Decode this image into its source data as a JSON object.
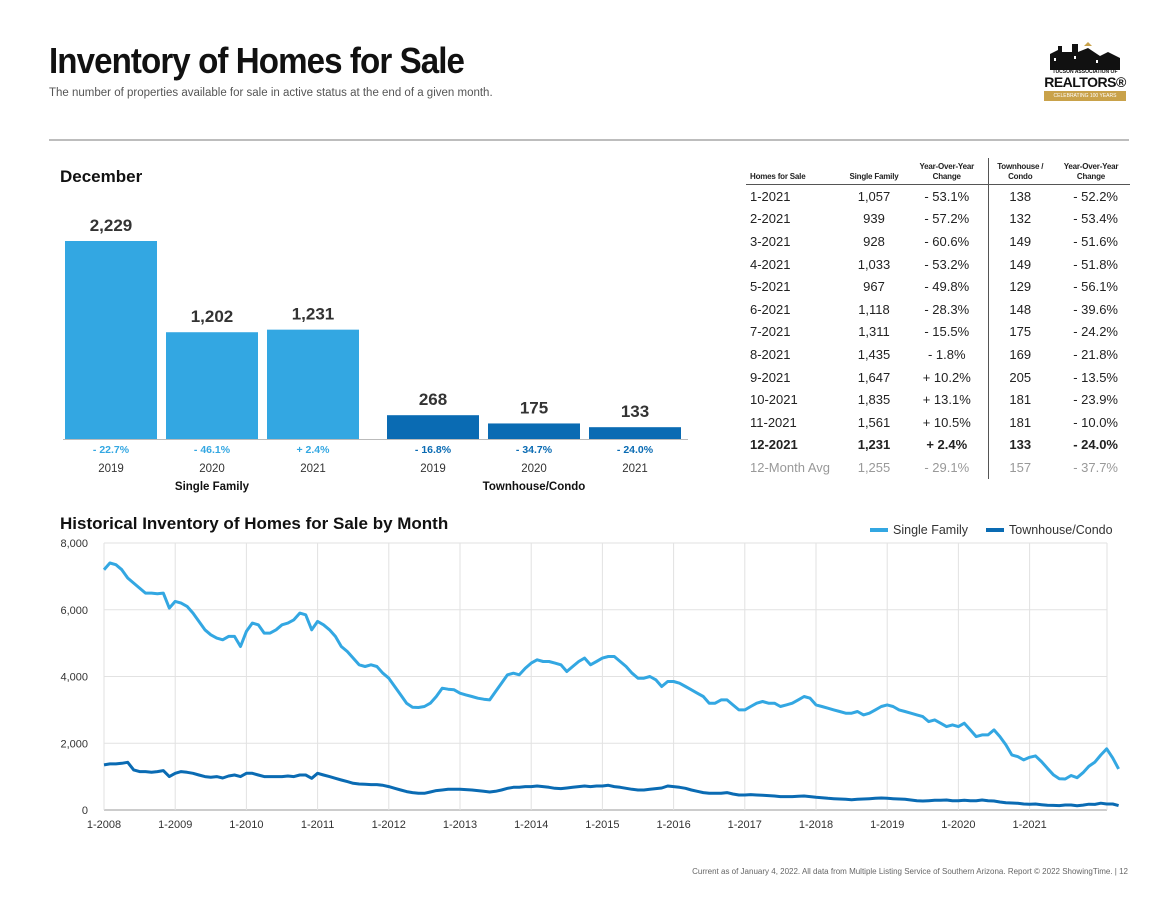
{
  "header": {
    "title": "Inventory of Homes for Sale",
    "subtitle": "The number of properties available for sale in active status at the end of a given month."
  },
  "logo": {
    "association": "TUCSON ASSOCIATION OF",
    "brand": "REALTORS®",
    "ribbon": "CELEBRATING 100 YEARS"
  },
  "colors": {
    "single_family": "#33a7e2",
    "townhouse": "#0a6bb3"
  },
  "table": {
    "headers": [
      "Homes for Sale",
      "Single Family",
      "Year-Over-Year Change",
      "Townhouse / Condo",
      "Year-Over-Year Change"
    ],
    "rows": [
      [
        "1-2021",
        "1,057",
        "- 53.1%",
        "138",
        "- 52.2%"
      ],
      [
        "2-2021",
        "939",
        "- 57.2%",
        "132",
        "- 53.4%"
      ],
      [
        "3-2021",
        "928",
        "- 60.6%",
        "149",
        "- 51.6%"
      ],
      [
        "4-2021",
        "1,033",
        "- 53.2%",
        "149",
        "- 51.8%"
      ],
      [
        "5-2021",
        "967",
        "- 49.8%",
        "129",
        "- 56.1%"
      ],
      [
        "6-2021",
        "1,118",
        "- 28.3%",
        "148",
        "- 39.6%"
      ],
      [
        "7-2021",
        "1,311",
        "- 15.5%",
        "175",
        "- 24.2%"
      ],
      [
        "8-2021",
        "1,435",
        "- 1.8%",
        "169",
        "- 21.8%"
      ],
      [
        "9-2021",
        "1,647",
        "+ 10.2%",
        "205",
        "- 13.5%"
      ],
      [
        "10-2021",
        "1,835",
        "+ 13.1%",
        "181",
        "- 23.9%"
      ],
      [
        "11-2021",
        "1,561",
        "+ 10.5%",
        "181",
        "- 10.0%"
      ],
      [
        "12-2021",
        "1,231",
        "+ 2.4%",
        "133",
        "- 24.0%"
      ],
      [
        "12-Month Avg",
        "1,255",
        "- 29.1%",
        "157",
        "- 37.7%"
      ]
    ]
  },
  "footer": "Current as of January 4, 2022. All data from Multiple Listing Service of Southern Arizona. Report © 2022 ShowingTime.  |  12",
  "chart_data": [
    {
      "type": "bar",
      "title": "December",
      "groups": [
        {
          "name": "Single Family",
          "categories": [
            "2019",
            "2020",
            "2021"
          ],
          "values": [
            2229,
            1202,
            1231
          ],
          "labels": [
            "2,229",
            "1,202",
            "1,231"
          ],
          "changes": [
            "- 22.7%",
            "- 46.1%",
            "+ 2.4%"
          ]
        },
        {
          "name": "Townhouse/Condo",
          "categories": [
            "2019",
            "2020",
            "2021"
          ],
          "values": [
            268,
            175,
            133
          ],
          "labels": [
            "268",
            "175",
            "133"
          ],
          "changes": [
            "- 16.8%",
            "- 34.7%",
            "- 24.0%"
          ]
        }
      ],
      "ylim": [
        0,
        2229
      ]
    },
    {
      "type": "line",
      "title": "Historical Inventory of Homes for Sale by Month",
      "xlabel": "",
      "ylabel": "",
      "x_ticks": [
        "1-2008",
        "1-2009",
        "1-2010",
        "1-2011",
        "1-2012",
        "1-2013",
        "1-2014",
        "1-2015",
        "1-2016",
        "1-2017",
        "1-2018",
        "1-2019",
        "1-2020",
        "1-2021"
      ],
      "y_ticks": [
        "0",
        "2,000",
        "4,000",
        "6,000",
        "8,000"
      ],
      "ylim": [
        0,
        8000
      ],
      "grid": true,
      "legend": "top-right",
      "series": [
        {
          "name": "Single Family",
          "values": [
            7200,
            7400,
            7350,
            7200,
            6950,
            6800,
            6650,
            6500,
            6500,
            6480,
            6500,
            6050,
            6250,
            6200,
            6100,
            5900,
            5650,
            5400,
            5250,
            5150,
            5100,
            5200,
            5200,
            4900,
            5350,
            5600,
            5550,
            5300,
            5300,
            5400,
            5550,
            5600,
            5700,
            5900,
            5850,
            5400,
            5650,
            5550,
            5400,
            5200,
            4900,
            4750,
            4550,
            4350,
            4300,
            4350,
            4300,
            4100,
            3950,
            3700,
            3450,
            3200,
            3080,
            3070,
            3100,
            3200,
            3400,
            3650,
            3620,
            3600,
            3500,
            3450,
            3400,
            3350,
            3320,
            3300,
            3550,
            3800,
            4050,
            4100,
            4050,
            4250,
            4400,
            4500,
            4450,
            4450,
            4400,
            4350,
            4150,
            4300,
            4450,
            4550,
            4350,
            4450,
            4550,
            4600,
            4600,
            4450,
            4300,
            4100,
            3950,
            3950,
            4000,
            3900,
            3700,
            3850,
            3850,
            3800,
            3700,
            3600,
            3500,
            3400,
            3200,
            3200,
            3300,
            3300,
            3150,
            3000,
            3000,
            3100,
            3200,
            3250,
            3200,
            3200,
            3100,
            3150,
            3200,
            3300,
            3400,
            3350,
            3150,
            3100,
            3050,
            3000,
            2950,
            2900,
            2900,
            2950,
            2850,
            2900,
            3000,
            3100,
            3150,
            3100,
            3000,
            2950,
            2900,
            2850,
            2800,
            2650,
            2700,
            2600,
            2500,
            2550,
            2500,
            2600,
            2400,
            2200,
            2250,
            2250,
            2400,
            2200,
            1950,
            1650,
            1600,
            1500,
            1580,
            1620,
            1450,
            1250,
            1057,
            939,
            928,
            1033,
            967,
            1118,
            1311,
            1435,
            1647,
            1835,
            1561,
            1231
          ]
        },
        {
          "name": "Townhouse/Condo",
          "values": [
            1350,
            1380,
            1380,
            1400,
            1430,
            1200,
            1150,
            1150,
            1130,
            1150,
            1180,
            1000,
            1100,
            1150,
            1130,
            1100,
            1050,
            1000,
            980,
            1000,
            960,
            1020,
            1050,
            1000,
            1100,
            1100,
            1050,
            1000,
            1000,
            1000,
            1000,
            1020,
            1000,
            1050,
            1050,
            950,
            1100,
            1050,
            1000,
            950,
            900,
            850,
            800,
            780,
            770,
            760,
            760,
            740,
            700,
            650,
            600,
            550,
            520,
            500,
            500,
            540,
            580,
            600,
            620,
            620,
            620,
            610,
            600,
            580,
            560,
            540,
            560,
            600,
            650,
            680,
            680,
            700,
            700,
            720,
            700,
            680,
            650,
            640,
            660,
            680,
            700,
            720,
            700,
            720,
            720,
            740,
            700,
            680,
            650,
            620,
            600,
            600,
            620,
            640,
            660,
            720,
            700,
            680,
            650,
            600,
            560,
            520,
            500,
            500,
            500,
            520,
            480,
            450,
            450,
            460,
            450,
            440,
            430,
            420,
            400,
            400,
            400,
            410,
            420,
            400,
            380,
            370,
            350,
            340,
            330,
            320,
            310,
            320,
            330,
            340,
            350,
            360,
            350,
            340,
            330,
            320,
            300,
            280,
            270,
            280,
            290,
            290,
            300,
            280,
            280,
            290,
            280,
            280,
            300,
            280,
            270,
            240,
            220,
            210,
            200,
            180,
            170,
            180,
            160,
            140,
            138,
            132,
            149,
            149,
            129,
            148,
            175,
            169,
            205,
            181,
            181,
            133
          ]
        }
      ]
    }
  ]
}
